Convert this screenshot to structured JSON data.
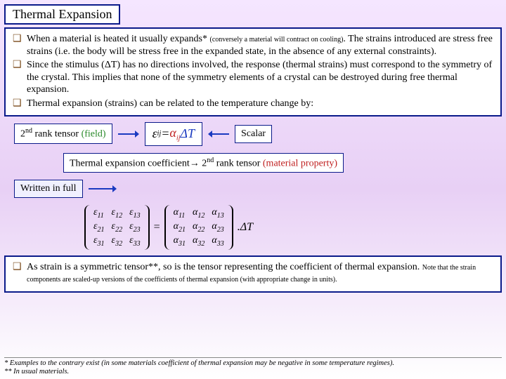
{
  "title": "Thermal Expansion",
  "box1": {
    "items": [
      {
        "pre": "When a material is heated it usually expands* ",
        "small": "(conversely a material will contract on cooling)",
        "post": ". The strains introduced are stress free strains (i.e. the body will be stress free in the expanded state, in the absence of any external constraints)."
      },
      {
        "pre": "Since the stimulus (ΔT) has no directions involved, the response (thermal strains) must correspond to the symmetry of the crystal. This implies that none of the symmetry elements of a crystal can be destroyed during free thermal expansion.",
        "small": "",
        "post": ""
      },
      {
        "pre": "Thermal expansion (strains) can be related to the temperature change by:",
        "small": "",
        "post": ""
      }
    ]
  },
  "labels": {
    "tensor_field_pre": "2",
    "tensor_field_sup": "nd",
    "tensor_field_post": " rank tensor ",
    "tensor_field_green": "(field)",
    "scalar": "Scalar",
    "coeff_pre": "Thermal expansion coefficient→ 2",
    "coeff_sup": "nd",
    "coeff_post": " rank tensor ",
    "coeff_red": "(material property)",
    "written": "Written in full"
  },
  "equation": {
    "eps": "ε",
    "ij": "ij",
    "eq": " = ",
    "alpha": "α",
    "ij2": "ij",
    "dt": "ΔT"
  },
  "matrices": {
    "eps_rows": [
      [
        "ε",
        "11",
        "ε",
        "12",
        "ε",
        "13"
      ],
      [
        "ε",
        "21",
        "ε",
        "22",
        "ε",
        "23"
      ],
      [
        "ε",
        "31",
        "ε",
        "32",
        "ε",
        "33"
      ]
    ],
    "alpha_rows": [
      [
        "α",
        "11",
        "α",
        "12",
        "α",
        "13"
      ],
      [
        "α",
        "21",
        "α",
        "22",
        "α",
        "23"
      ],
      [
        "α",
        "31",
        "α",
        "32",
        "α",
        "33"
      ]
    ],
    "eq": "=",
    "dot_dt": ".ΔT"
  },
  "box2": {
    "item_pre": "As strain is a symmetric tensor**, so is the tensor representing the coefficient of thermal expansion. ",
    "item_small": "Note that the strain components are scaled-up versions of the coefficients of thermal expansion (with appropriate change in units)."
  },
  "footnotes": {
    "l1": "* Examples to the contrary exist (in some materials coefficient of thermal expansion may be negative in some temperature regimes).",
    "l2": "** In usual materials."
  }
}
